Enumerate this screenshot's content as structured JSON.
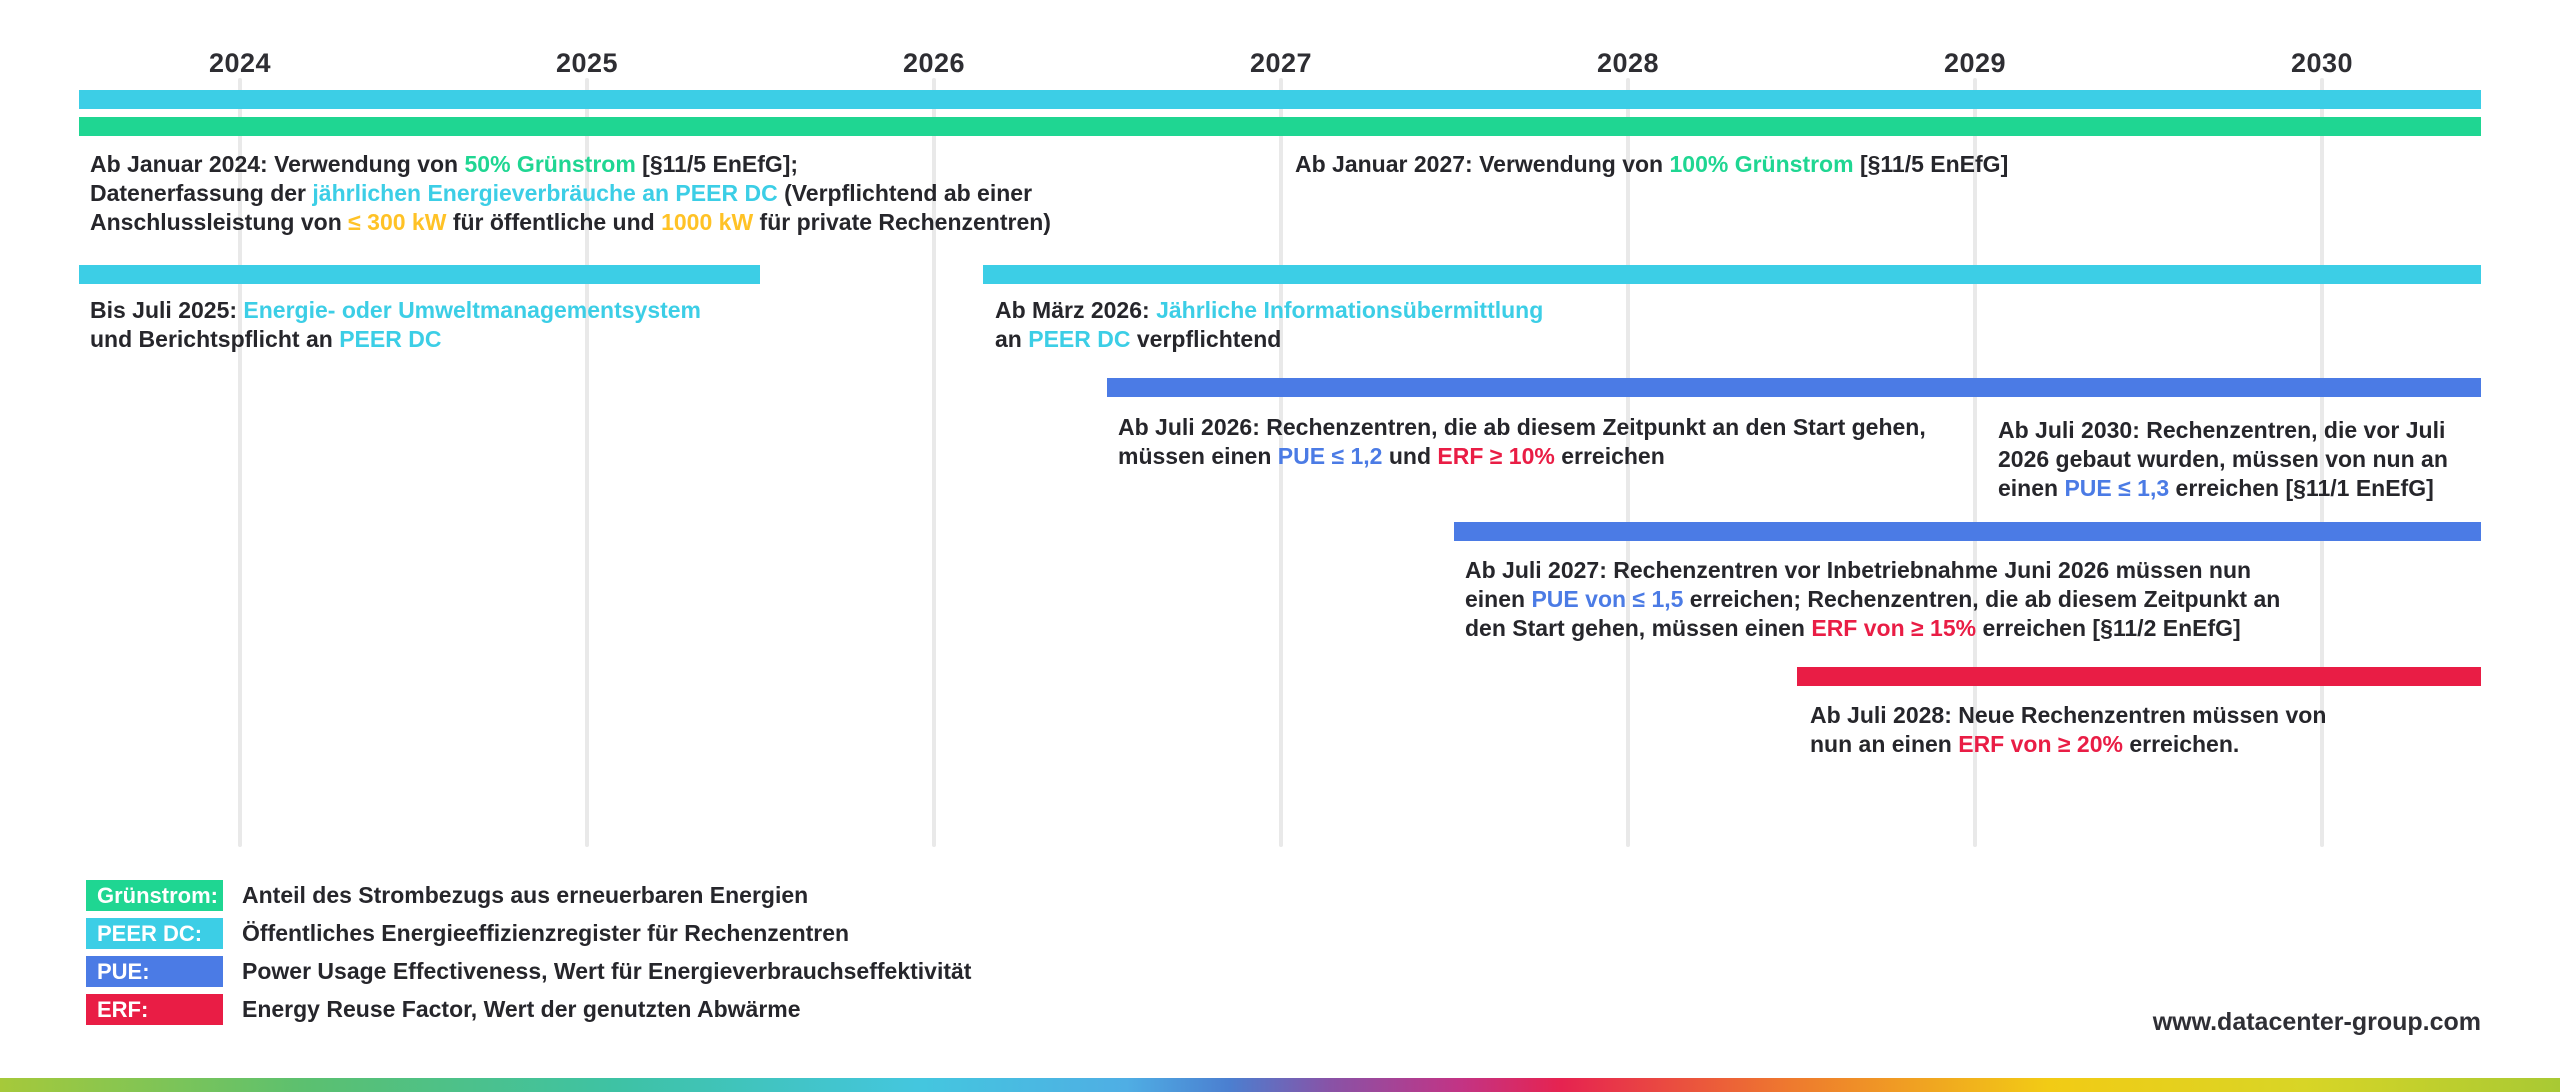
{
  "colors": {
    "green": "#1FD692",
    "cyan": "#3CCEE6",
    "blue": "#4B7BE5",
    "red": "#E91D45",
    "yellow": "#FFC226",
    "text": "#26262B",
    "gridline": "#E9E9E9"
  },
  "timeline": {
    "years": [
      "2024",
      "2025",
      "2026",
      "2027",
      "2028",
      "2029",
      "2030"
    ],
    "bars": [
      {
        "id": "peer-dc-data",
        "color": "cyan",
        "from": "Januar 2024",
        "to": "2030+"
      },
      {
        "id": "gruenstrom",
        "color": "green",
        "from": "Januar 2024",
        "to": "2030+"
      },
      {
        "id": "ems-berichtspflicht",
        "color": "cyan",
        "from": "Januar 2024",
        "to": "Juli 2025"
      },
      {
        "id": "informationsuebermittlung",
        "color": "cyan",
        "from": "März 2026",
        "to": "2030+"
      },
      {
        "id": "pue-1-2-erf-10",
        "color": "blue",
        "from": "Juli 2026",
        "to": "2030+"
      },
      {
        "id": "pue-1-5-erf-15",
        "color": "blue",
        "from": "Juli 2027",
        "to": "2030+"
      },
      {
        "id": "erf-20",
        "color": "red",
        "from": "Juli 2028",
        "to": "2030+"
      }
    ]
  },
  "annotations": {
    "jan2024": {
      "lines": [
        [
          {
            "t": "Ab Januar 2024: Verwendung von "
          },
          {
            "t": "50% Grünstrom",
            "c": "green"
          },
          {
            "t": " [§11/5 EnEfG];"
          }
        ],
        [
          {
            "t": "Datenerfassung der "
          },
          {
            "t": "jährlichen Energieverbräuche an PEER DC",
            "c": "cyan"
          },
          {
            "t": " (Verpflichtend ab einer"
          }
        ],
        [
          {
            "t": "Anschlussleistung von "
          },
          {
            "t": "≤ 300 kW",
            "c": "yellow"
          },
          {
            "t": " für öffentliche und "
          },
          {
            "t": "1000 kW",
            "c": "yellow"
          },
          {
            "t": " für private Rechenzentren)"
          }
        ]
      ]
    },
    "jan2027": {
      "lines": [
        [
          {
            "t": "Ab Januar 2027: Verwendung von "
          },
          {
            "t": "100% Grünstrom",
            "c": "green"
          },
          {
            "t": " [§11/5 EnEfG]"
          }
        ]
      ]
    },
    "juli2025": {
      "lines": [
        [
          {
            "t": "Bis Juli 2025: "
          },
          {
            "t": "Energie- oder Umweltmanagementsystem",
            "c": "cyan"
          }
        ],
        [
          {
            "t": "und Berichtspflicht an "
          },
          {
            "t": "PEER DC",
            "c": "cyan"
          }
        ]
      ]
    },
    "maerz2026": {
      "lines": [
        [
          {
            "t": "Ab März 2026: "
          },
          {
            "t": "Jährliche Informationsübermittlung",
            "c": "cyan"
          }
        ],
        [
          {
            "t": "an "
          },
          {
            "t": "PEER DC",
            "c": "cyan"
          },
          {
            "t": " verpflichtend"
          }
        ]
      ]
    },
    "juli2026": {
      "lines": [
        [
          {
            "t": "Ab Juli 2026: Rechenzentren, die ab diesem Zeitpunkt an den Start gehen,"
          }
        ],
        [
          {
            "t": "müssen einen "
          },
          {
            "t": "PUE ≤ 1,2",
            "c": "blue"
          },
          {
            "t": " und "
          },
          {
            "t": "ERF ≥ 10%",
            "c": "red"
          },
          {
            "t": " erreichen"
          }
        ]
      ]
    },
    "juli2030": {
      "lines": [
        [
          {
            "t": "Ab Juli 2030: Rechenzentren, die vor Juli"
          }
        ],
        [
          {
            "t": "2026 gebaut wurden, müssen von nun an"
          }
        ],
        [
          {
            "t": "einen "
          },
          {
            "t": "PUE ≤ 1,3",
            "c": "blue"
          },
          {
            "t": " erreichen [§11/1 EnEfG]"
          }
        ]
      ]
    },
    "juli2027": {
      "lines": [
        [
          {
            "t": "Ab Juli 2027: Rechenzentren vor Inbetriebnahme Juni 2026 müssen nun"
          }
        ],
        [
          {
            "t": "einen "
          },
          {
            "t": "PUE von ≤ 1,5",
            "c": "blue"
          },
          {
            "t": " erreichen; Rechenzentren, die ab diesem Zeitpunkt an"
          }
        ],
        [
          {
            "t": "den Start gehen, müssen einen "
          },
          {
            "t": "ERF von ≥ 15%",
            "c": "red"
          },
          {
            "t": " erreichen [§11/2 EnEfG]"
          }
        ]
      ]
    },
    "juli2028": {
      "lines": [
        [
          {
            "t": "Ab Juli 2028: Neue Rechenzentren müssen von"
          }
        ],
        [
          {
            "t": "nun an einen "
          },
          {
            "t": "ERF von ≥ 20%",
            "c": "red"
          },
          {
            "t": " erreichen."
          }
        ]
      ]
    }
  },
  "legend": {
    "items": [
      {
        "label": "Grünstrom:",
        "description": "Anteil des Strombezugs aus erneuerbaren Energien",
        "color": "green"
      },
      {
        "label": "PEER DC:",
        "description": "Öffentliches Energieeffizienzregister für Rechenzentren",
        "color": "cyan"
      },
      {
        "label": "PUE:",
        "description": "Power Usage Effectiveness, Wert für Energieverbrauchseffektivität",
        "color": "blue"
      },
      {
        "label": "ERF:",
        "description": "Energy Reuse Factor, Wert der genutzten Abwärme",
        "color": "red"
      }
    ]
  },
  "footer": {
    "website": "www.datacenter-group.com"
  }
}
